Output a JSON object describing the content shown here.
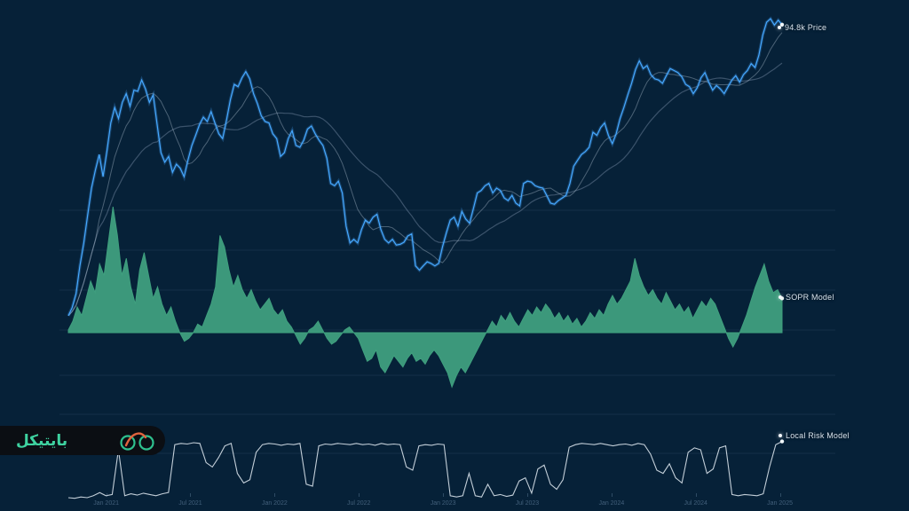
{
  "page": {
    "background": "#062138"
  },
  "watermark": {
    "brand": "بایتیکل",
    "brand_color": "#3ED2A0",
    "pill_color": "#0B0E13",
    "icon": "bicycle-logo",
    "wheel_color": "#2EC08E",
    "frame_color": "#E2633E"
  },
  "axis": {
    "x_labels": [
      "Jan 2021",
      "Jul 2021",
      "Jan 2022",
      "Jul 2022",
      "Jan 2023",
      "Jul 2023",
      "Jan 2024",
      "Jul 2024",
      "Jan 2025"
    ],
    "x_range": [
      "Oct 2020",
      "Jan 2025"
    ],
    "grid": "horizontal-faint"
  },
  "chart_data": [
    {
      "type": "line",
      "name": "Price",
      "label": "94.8k Price",
      "unit": "USD thousands",
      "color": "#46A8FF",
      "scale": "log",
      "ylim": [
        11.2,
        101
      ],
      "last_value": 94.8,
      "moving_averages": [
        8,
        24
      ],
      "values": [
        11.5,
        12.2,
        13.5,
        16.5,
        19.5,
        23.8,
        29,
        33,
        37,
        31.5,
        38,
        46.5,
        52,
        48,
        54,
        57.5,
        52.5,
        59,
        58.5,
        63.5,
        59.5,
        54,
        57,
        46,
        37.5,
        35,
        36.5,
        32.5,
        34.5,
        33.5,
        31.5,
        35.5,
        39.5,
        42.5,
        46,
        48.5,
        47,
        50.5,
        46.5,
        43,
        41.5,
        47.5,
        55,
        61.5,
        60.5,
        64.5,
        67.5,
        64,
        57.5,
        53.5,
        49,
        47,
        46.5,
        43,
        41.5,
        36.5,
        37.5,
        41.5,
        44,
        39.5,
        39,
        41,
        44.5,
        45.5,
        43,
        41,
        39.5,
        36,
        30,
        29.5,
        30.5,
        28,
        22,
        19.5,
        20,
        19.5,
        21.5,
        23,
        22.5,
        23.5,
        24,
        21.5,
        20,
        19.5,
        20,
        19.2,
        19.3,
        19.6,
        20.5,
        20.8,
        16.5,
        16,
        16.5,
        17,
        16.8,
        16.5,
        16.8,
        19,
        21,
        23,
        23.5,
        22,
        24.5,
        23.2,
        22.5,
        25,
        28,
        28.5,
        29.5,
        30,
        28,
        29,
        28.5,
        27,
        26.5,
        27.5,
        26,
        25.5,
        30,
        30.5,
        30.3,
        29.5,
        29.2,
        29,
        27.5,
        26,
        25.8,
        26.5,
        27,
        27.5,
        30,
        34,
        35.5,
        37,
        37.8,
        39,
        43.5,
        42.5,
        45,
        46.5,
        42.5,
        40,
        43,
        48,
        52,
        57,
        62,
        68.5,
        73,
        69,
        70.5,
        66,
        64,
        63.5,
        62,
        65.5,
        69,
        68,
        67,
        65,
        61.5,
        60.5,
        57.5,
        60,
        64.5,
        67,
        62.5,
        59,
        61,
        59.5,
        57.5,
        60.5,
        63.5,
        65.5,
        62.5,
        66,
        68,
        71.5,
        69.5,
        76,
        88,
        96.5,
        99,
        94.5,
        98,
        94.8
      ]
    },
    {
      "type": "area",
      "name": "SOPR Model",
      "label": "SOPR Model",
      "color": "#3F9F7E",
      "baseline": 1.0,
      "ylim": [
        0.9,
        1.23
      ],
      "values": [
        1.005,
        1.02,
        1.045,
        1.03,
        1.06,
        1.09,
        1.07,
        1.12,
        1.1,
        1.16,
        1.22,
        1.17,
        1.1,
        1.13,
        1.08,
        1.05,
        1.11,
        1.14,
        1.1,
        1.06,
        1.08,
        1.05,
        1.03,
        1.045,
        1.02,
        1.0,
        0.985,
        0.99,
        1.0,
        1.015,
        1.01,
        1.03,
        1.05,
        1.08,
        1.17,
        1.15,
        1.11,
        1.08,
        1.1,
        1.075,
        1.06,
        1.075,
        1.055,
        1.04,
        1.05,
        1.06,
        1.04,
        1.03,
        1.04,
        1.02,
        1.01,
        0.995,
        0.98,
        0.99,
        1.005,
        1.01,
        1.02,
        1.005,
        0.99,
        0.98,
        0.985,
        0.995,
        1.005,
        1.01,
        1.0,
        0.99,
        0.97,
        0.95,
        0.955,
        0.97,
        0.94,
        0.93,
        0.945,
        0.96,
        0.95,
        0.94,
        0.955,
        0.965,
        0.95,
        0.955,
        0.945,
        0.96,
        0.97,
        0.96,
        0.945,
        0.93,
        0.905,
        0.925,
        0.94,
        0.93,
        0.945,
        0.96,
        0.975,
        0.99,
        1.005,
        1.02,
        1.01,
        1.03,
        1.02,
        1.035,
        1.02,
        1.01,
        1.025,
        1.04,
        1.03,
        1.045,
        1.035,
        1.05,
        1.04,
        1.025,
        1.035,
        1.02,
        1.03,
        1.015,
        1.025,
        1.01,
        1.02,
        1.035,
        1.025,
        1.04,
        1.03,
        1.05,
        1.065,
        1.05,
        1.06,
        1.075,
        1.09,
        1.13,
        1.1,
        1.08,
        1.065,
        1.075,
        1.06,
        1.05,
        1.07,
        1.055,
        1.04,
        1.05,
        1.035,
        1.045,
        1.025,
        1.04,
        1.055,
        1.045,
        1.06,
        1.05,
        1.03,
        1.01,
        0.99,
        0.975,
        0.99,
        1.01,
        1.03,
        1.055,
        1.08,
        1.1,
        1.12,
        1.09,
        1.07,
        1.075,
        1.06
      ]
    },
    {
      "type": "line",
      "name": "Local Risk Model",
      "label": "Local Risk Model",
      "color": "#DDE6EE",
      "ylim": [
        0,
        1
      ],
      "values": [
        0.07,
        0.06,
        0.08,
        0.07,
        0.1,
        0.15,
        0.1,
        0.12,
        0.82,
        0.1,
        0.13,
        0.11,
        0.14,
        0.12,
        0.1,
        0.13,
        0.15,
        0.9,
        0.92,
        0.91,
        0.93,
        0.92,
        0.62,
        0.55,
        0.7,
        0.88,
        0.92,
        0.45,
        0.3,
        0.35,
        0.78,
        0.9,
        0.92,
        0.91,
        0.89,
        0.91,
        0.9,
        0.92,
        0.28,
        0.25,
        0.88,
        0.91,
        0.9,
        0.92,
        0.91,
        0.9,
        0.92,
        0.9,
        0.91,
        0.89,
        0.92,
        0.9,
        0.91,
        0.9,
        0.55,
        0.5,
        0.88,
        0.9,
        0.89,
        0.91,
        0.9,
        0.1,
        0.08,
        0.1,
        0.45,
        0.1,
        0.08,
        0.28,
        0.1,
        0.12,
        0.09,
        0.11,
        0.33,
        0.38,
        0.14,
        0.52,
        0.58,
        0.28,
        0.2,
        0.35,
        0.86,
        0.9,
        0.92,
        0.91,
        0.9,
        0.92,
        0.9,
        0.88,
        0.9,
        0.91,
        0.89,
        0.92,
        0.9,
        0.75,
        0.5,
        0.45,
        0.6,
        0.38,
        0.3,
        0.78,
        0.85,
        0.82,
        0.45,
        0.52,
        0.85,
        0.88,
        0.12,
        0.1,
        0.12,
        0.11,
        0.1,
        0.13,
        0.55,
        0.9,
        0.95
      ]
    }
  ]
}
